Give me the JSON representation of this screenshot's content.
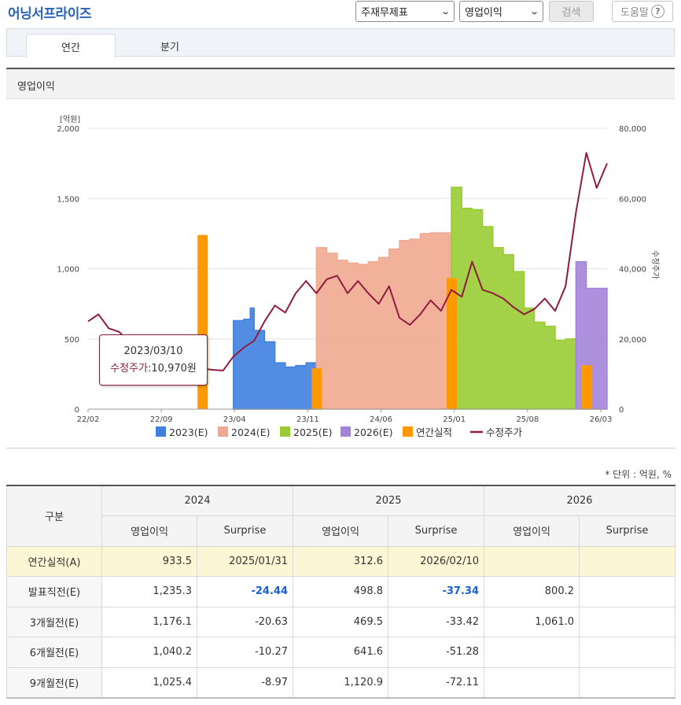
{
  "header": {
    "title": "어닝서프라이즈",
    "select1": "주재무제표",
    "select2": "영업이익",
    "search_label": "검색",
    "help_label": "도움말",
    "help_icon": "?"
  },
  "tabs": [
    {
      "label": "연간"
    },
    {
      "label": "분기"
    }
  ],
  "section": {
    "title": "영업이익"
  },
  "tooltip": {
    "date": "2023/03/10",
    "key": "수정주가",
    "value": "10,970원"
  },
  "chart_data": {
    "type": "area",
    "title": "",
    "left_axis": {
      "unit": "[억원]",
      "ylim": [
        0,
        2000
      ],
      "ticks": [
        "2,000",
        "1,500",
        "1,000",
        "500",
        "0"
      ]
    },
    "right_axis": {
      "label": "수정주가",
      "ylim": [
        0,
        80000
      ],
      "ticks": [
        "80,000",
        "60,000",
        "40,000",
        "20,000",
        "0"
      ]
    },
    "x_ticks": [
      "22/02",
      "22/09",
      "23/04",
      "23/11",
      "24/06",
      "25/01",
      "25/08",
      "26/03"
    ],
    "legend": [
      "2023(E)",
      "2024(E)",
      "2025(E)",
      "2026(E)",
      "연간실적",
      "수정주가"
    ],
    "grid": true,
    "colors": {
      "2023": "#3f7fe0",
      "2024": "#f0a890",
      "2025": "#99cc33",
      "2026": "#a383d9",
      "actual": "#ff9900",
      "price": "#8f1d3e"
    },
    "estimates": [
      {
        "name": "2023(E)",
        "points": [
          [
            "2023-04",
            630
          ],
          [
            "2023-05",
            640
          ],
          [
            "2023-05-20",
            720
          ],
          [
            "2023-06",
            560
          ],
          [
            "2023-07",
            480
          ],
          [
            "2023-08",
            330
          ],
          [
            "2023-09",
            300
          ],
          [
            "2023-10",
            310
          ],
          [
            "2023-11",
            330
          ],
          [
            "2023-12",
            340
          ]
        ]
      },
      {
        "name": "2024(E)",
        "points": [
          [
            "2023-12",
            1150
          ],
          [
            "2024-01",
            1110
          ],
          [
            "2024-02",
            1060
          ],
          [
            "2024-03",
            1040
          ],
          [
            "2024-04",
            1030
          ],
          [
            "2024-05",
            1050
          ],
          [
            "2024-06",
            1080
          ],
          [
            "2024-07",
            1140
          ],
          [
            "2024-08",
            1200
          ],
          [
            "2024-09",
            1210
          ],
          [
            "2024-10",
            1250
          ],
          [
            "2024-11",
            1255
          ],
          [
            "2024-12",
            1255
          ],
          [
            "2025-01",
            1250
          ]
        ]
      },
      {
        "name": "2025(E)",
        "points": [
          [
            "2025-01",
            1580
          ],
          [
            "2025-02",
            1430
          ],
          [
            "2025-03",
            1420
          ],
          [
            "2025-04",
            1300
          ],
          [
            "2025-05",
            1150
          ],
          [
            "2025-06",
            1100
          ],
          [
            "2025-07",
            980
          ],
          [
            "2025-08",
            720
          ],
          [
            "2025-09",
            620
          ],
          [
            "2025-10",
            590
          ],
          [
            "2025-11",
            490
          ],
          [
            "2025-12",
            500
          ],
          [
            "2026-01",
            510
          ]
        ]
      },
      {
        "name": "2026(E)",
        "points": [
          [
            "2026-01",
            1050
          ],
          [
            "2026-02",
            860
          ],
          [
            "2026-03",
            860
          ],
          [
            "2026-04",
            800
          ]
        ]
      }
    ],
    "actuals": [
      {
        "date": "2023-01",
        "value": 1240
      },
      {
        "date": "2023-12",
        "value": 290
      },
      {
        "date": "2025-01",
        "value": 933.5
      },
      {
        "date": "2026-02",
        "value": 312.6
      }
    ],
    "price": {
      "name": "수정주가",
      "points": [
        [
          "2022-02",
          25000
        ],
        [
          "2022-03",
          27000
        ],
        [
          "2022-04",
          23000
        ],
        [
          "2022-05",
          22000
        ],
        [
          "2022-06",
          19000
        ],
        [
          "2022-07",
          18000
        ],
        [
          "2022-08",
          17500
        ],
        [
          "2022-09",
          17000
        ],
        [
          "2022-10",
          16000
        ],
        [
          "2022-11",
          15000
        ],
        [
          "2022-12",
          13000
        ],
        [
          "2023-01",
          11500
        ],
        [
          "2023-02",
          11200
        ],
        [
          "2023-03",
          10970
        ],
        [
          "2023-04",
          15000
        ],
        [
          "2023-05",
          17500
        ],
        [
          "2023-06",
          19500
        ],
        [
          "2023-07",
          25000
        ],
        [
          "2023-08",
          29500
        ],
        [
          "2023-09",
          27500
        ],
        [
          "2023-10",
          33000
        ],
        [
          "2023-11",
          36500
        ],
        [
          "2023-12",
          33000
        ],
        [
          "2024-01",
          37000
        ],
        [
          "2024-02",
          38000
        ],
        [
          "2024-03",
          33000
        ],
        [
          "2024-04",
          36500
        ],
        [
          "2024-05",
          33000
        ],
        [
          "2024-06",
          30000
        ],
        [
          "2024-07",
          35000
        ],
        [
          "2024-08",
          26000
        ],
        [
          "2024-09",
          24000
        ],
        [
          "2024-10",
          27000
        ],
        [
          "2024-11",
          31000
        ],
        [
          "2024-12",
          28000
        ],
        [
          "2025-01",
          34000
        ],
        [
          "2025-02",
          32000
        ],
        [
          "2025-03",
          42000
        ],
        [
          "2025-04",
          34000
        ],
        [
          "2025-05",
          33000
        ],
        [
          "2025-06",
          31500
        ],
        [
          "2025-07",
          29000
        ],
        [
          "2025-08",
          27000
        ],
        [
          "2025-09",
          28500
        ],
        [
          "2025-10",
          31500
        ],
        [
          "2025-11",
          28000
        ],
        [
          "2025-12",
          35000
        ],
        [
          "2026-01",
          56000
        ],
        [
          "2026-02",
          73000
        ],
        [
          "2026-03",
          63000
        ],
        [
          "2026-04",
          70000
        ]
      ]
    }
  },
  "unit_note": "* 단위 : 억원, %",
  "table": {
    "row_header": "구분",
    "years": [
      "2024",
      "2025",
      "2026"
    ],
    "subheads": [
      "영업이익",
      "Surprise",
      "영업이익",
      "Surprise",
      "영업이익",
      "Surprise"
    ],
    "rows": [
      {
        "label": "연간실적(A)",
        "cells": [
          "933.5",
          "2025/01/31",
          "312.6",
          "2026/02/10",
          "",
          ""
        ]
      },
      {
        "label": "발표직전(E)",
        "cells": [
          "1,235.3",
          "-24.44",
          "498.8",
          "-37.34",
          "800.2",
          ""
        ]
      },
      {
        "label": "3개월전(E)",
        "cells": [
          "1,176.1",
          "-20.63",
          "469.5",
          "-33.42",
          "1,061.0",
          ""
        ]
      },
      {
        "label": "6개월전(E)",
        "cells": [
          "1,040.2",
          "-10.27",
          "641.6",
          "-51.28",
          "",
          ""
        ]
      },
      {
        "label": "9개월전(E)",
        "cells": [
          "1,025.4",
          "-8.97",
          "1,120.9",
          "-72.11",
          "",
          ""
        ]
      }
    ]
  }
}
